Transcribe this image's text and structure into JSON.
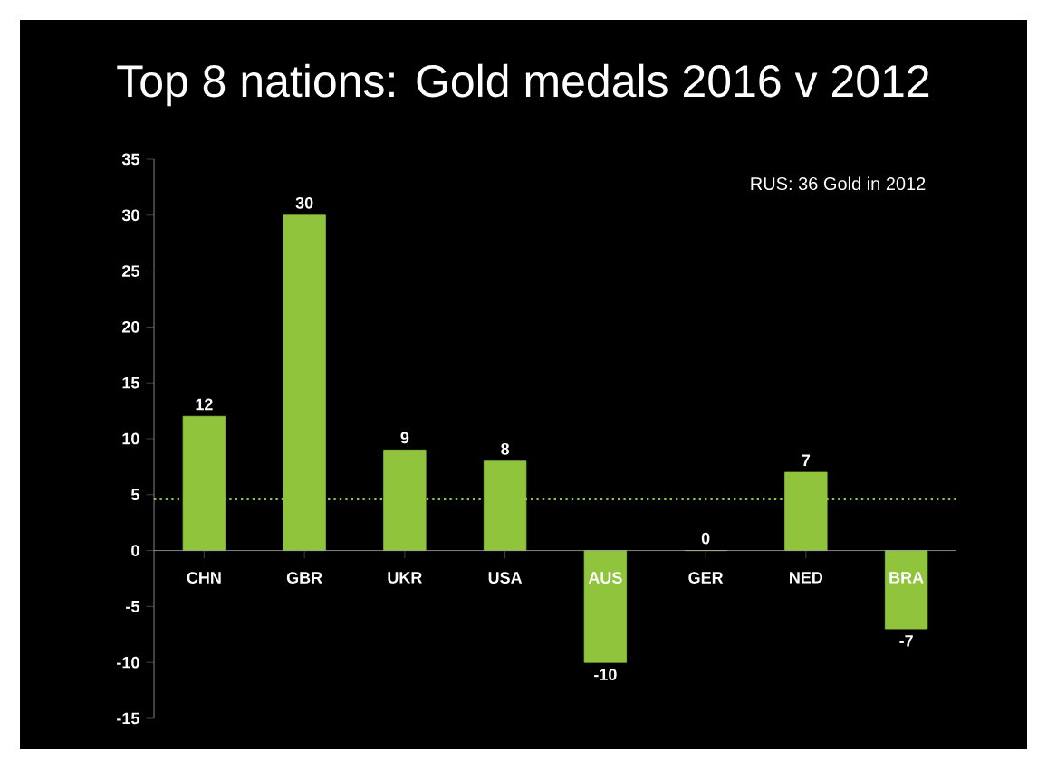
{
  "chart_data": {
    "type": "bar",
    "title": "Top 8 nations: Gold medals 2016 v 2012",
    "categories": [
      "CHN",
      "GBR",
      "UKR",
      "USA",
      "AUS",
      "GER",
      "NED",
      "BRA"
    ],
    "values": [
      12,
      30,
      9,
      8,
      -10,
      0,
      7,
      -7
    ],
    "color": "#8fc43c",
    "ylim": [
      -15,
      35
    ],
    "yticks": [
      -15,
      -10,
      -5,
      0,
      5,
      10,
      15,
      20,
      25,
      30,
      35
    ],
    "data_labels": true,
    "grid": false,
    "ref_lines": [
      {
        "axis": "y",
        "value": 4.6,
        "color": "#8fc43c",
        "line_style": "dotted"
      }
    ],
    "annotations": [
      "RUS: 36 Gold in 2012"
    ]
  }
}
